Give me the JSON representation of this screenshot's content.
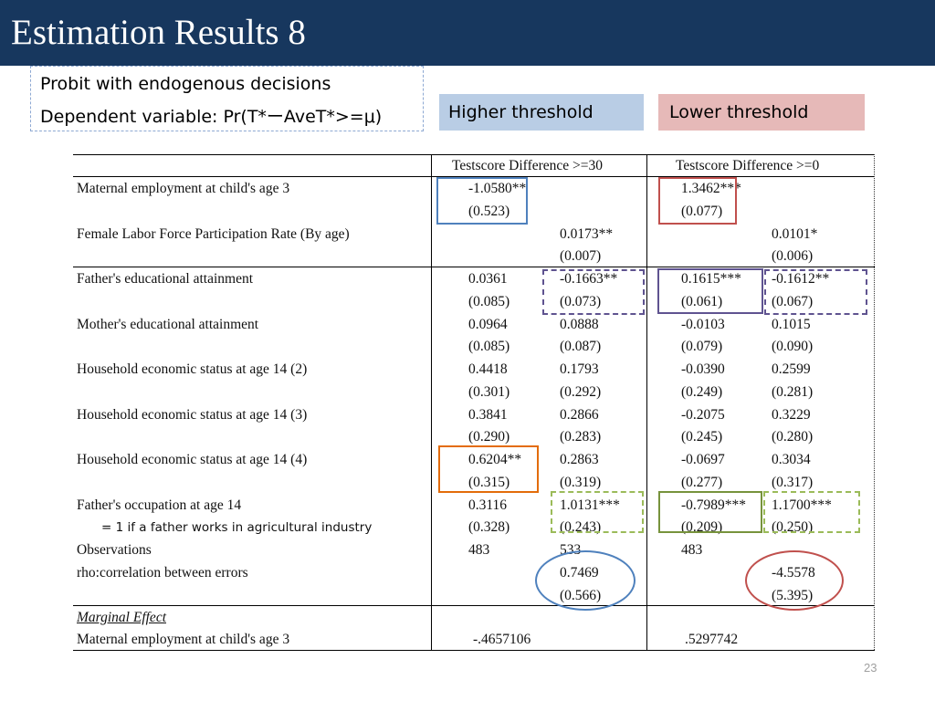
{
  "title": "Estimation Results 8",
  "subtitle": {
    "line1": "Probit with endogenous decisions",
    "line2": "Dependent variable: Pr(T*ーAveT*>=μ)"
  },
  "tags": {
    "higher": "Higher threshold",
    "lower": "Lower threshold"
  },
  "table": {
    "headers": {
      "higher": "Testscore Difference >=30",
      "lower": "Testscore Difference >=0"
    },
    "rows": [
      {
        "label": "Maternal employment at child's age 3",
        "c1": "-1.0580**",
        "c2": "",
        "c3": "1.3462***",
        "c4": ""
      },
      {
        "label": "",
        "c1": "(0.523)",
        "c2": "",
        "c3": "(0.077)",
        "c4": ""
      },
      {
        "label": "Female Labor Force Participation Rate (By age)",
        "c1": "",
        "c2": "0.0173**",
        "c3": "",
        "c4": "0.0101*"
      },
      {
        "label": "",
        "c1": "",
        "c2": "(0.007)",
        "c3": "",
        "c4": "(0.006)"
      },
      {
        "label": "Father's educational attainment",
        "c1": "0.0361",
        "c2": "-0.1663**",
        "c3": "0.1615***",
        "c4": "-0.1612**"
      },
      {
        "label": "",
        "c1": "(0.085)",
        "c2": "(0.073)",
        "c3": "(0.061)",
        "c4": "(0.067)"
      },
      {
        "label": "Mother's educational attainment",
        "c1": "0.0964",
        "c2": "0.0888",
        "c3": "-0.0103",
        "c4": "0.1015"
      },
      {
        "label": "",
        "c1": "(0.085)",
        "c2": "(0.087)",
        "c3": "(0.079)",
        "c4": "(0.090)"
      },
      {
        "label": "Household economic status at age 14 (2)",
        "c1": "0.4418",
        "c2": "0.1793",
        "c3": "-0.0390",
        "c4": "0.2599"
      },
      {
        "label": "",
        "c1": "(0.301)",
        "c2": "(0.292)",
        "c3": "(0.249)",
        "c4": "(0.281)"
      },
      {
        "label": "Household economic status at age 14 (3)",
        "c1": "0.3841",
        "c2": "0.2866",
        "c3": "-0.2075",
        "c4": "0.3229"
      },
      {
        "label": "",
        "c1": "(0.290)",
        "c2": "(0.283)",
        "c3": "(0.245)",
        "c4": "(0.280)"
      },
      {
        "label": "Household economic status at age 14 (4)",
        "c1": "0.6204**",
        "c2": "0.2863",
        "c3": "-0.0697",
        "c4": "0.3034"
      },
      {
        "label": "",
        "c1": "(0.315)",
        "c2": "(0.319)",
        "c3": "(0.277)",
        "c4": "(0.317)"
      },
      {
        "label": "Father's occupation at age 14",
        "c1": "0.3116",
        "c2": "1.0131***",
        "c3": "-0.7989***",
        "c4": "1.1700***"
      },
      {
        "label": "= 1 if a father works in agricultural industry",
        "c1": "(0.328)",
        "c2": "(0.243)",
        "c3": "(0.209)",
        "c4": "(0.250)"
      },
      {
        "label": "Observations",
        "c1": "483",
        "c2": "533",
        "c3": "483",
        "c4": ""
      },
      {
        "label": "rho:correlation between errors",
        "c1": "",
        "c2": "0.7469",
        "c3": "",
        "c4": "-4.5578"
      },
      {
        "label": "",
        "c1": "",
        "c2": "(0.566)",
        "c3": "",
        "c4": "(5.395)"
      }
    ],
    "marginal": {
      "heading": "Marginal Effect",
      "label": "Maternal employment at child's age 3",
      "higher": "-.4657106",
      "lower": ".5297742"
    }
  },
  "colors": {
    "title_bar": "#17375e",
    "higher_tag": "#b9cde5",
    "lower_tag": "#e6b9b8",
    "blue_mark": "#4f81bd",
    "red_mark": "#c0504d",
    "purple_mark": "#5f5390",
    "orange_mark": "#e36c0a",
    "green_mark": "#77933c",
    "light_green_mark": "#9bbb59"
  },
  "page_number": "23"
}
